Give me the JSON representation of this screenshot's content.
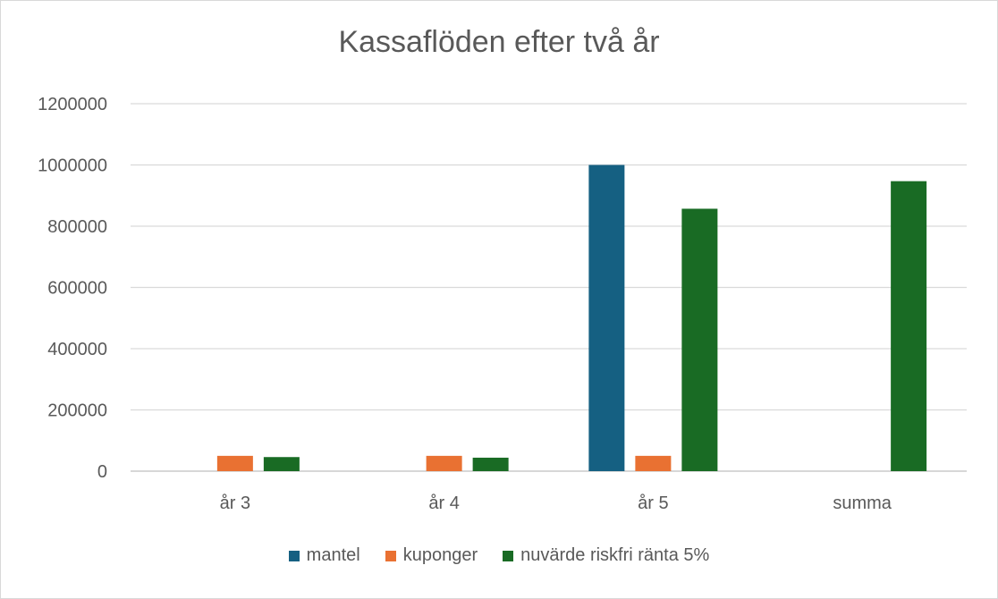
{
  "chart_data": {
    "type": "bar",
    "title": "Kassaflöden efter två år",
    "xlabel": "",
    "ylabel": "",
    "categories": [
      "år 3",
      "år 4",
      "år 5",
      "summa"
    ],
    "ylim": [
      0,
      1200000
    ],
    "yticks": [
      "0",
      "200000",
      "400000",
      "600000",
      "800000",
      "1000000",
      "1200000"
    ],
    "grid": true,
    "legend_position": "bottom",
    "series": [
      {
        "name": "mantel",
        "color": "#156082",
        "values": [
          0,
          0,
          1000000,
          0
        ]
      },
      {
        "name": "kuponger",
        "color": "#e97132",
        "values": [
          50000,
          50000,
          50000,
          0
        ]
      },
      {
        "name": "nuvärde riskfri ränta 5%",
        "color": "#196b24",
        "values": [
          46000,
          44000,
          857000,
          947000
        ]
      }
    ]
  }
}
